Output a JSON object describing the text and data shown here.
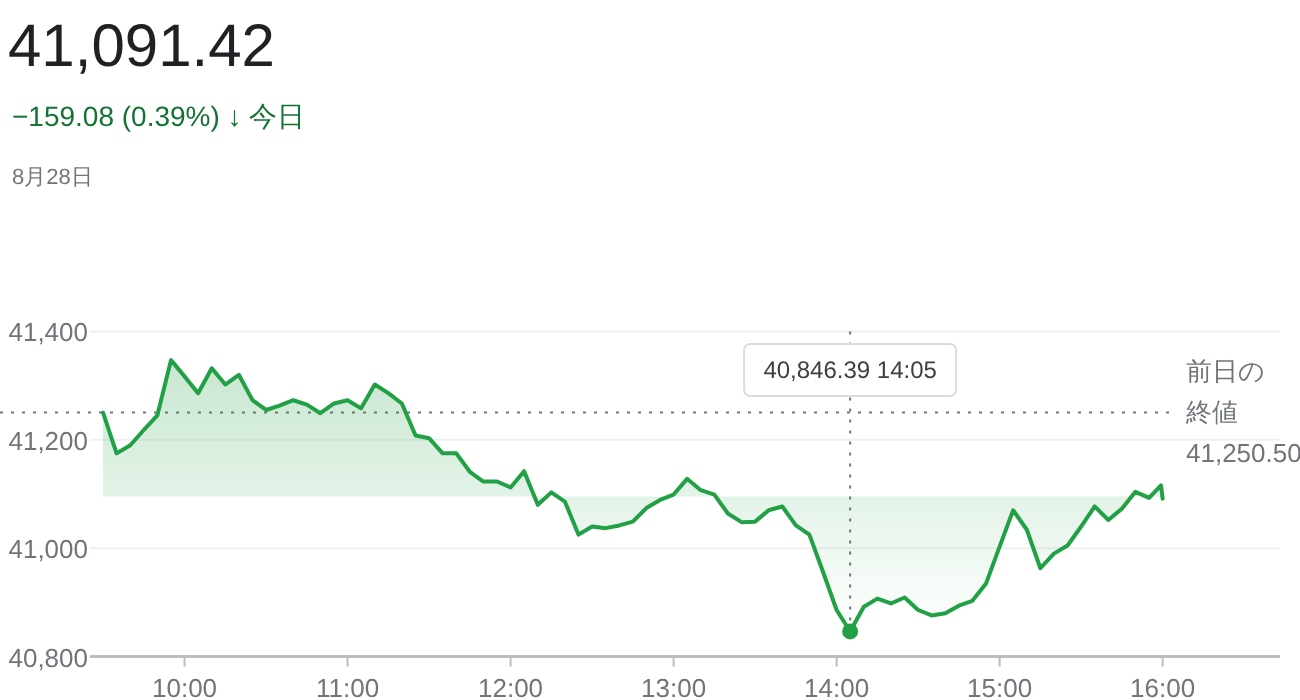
{
  "chart_data": {
    "type": "area",
    "title": "41,091.42",
    "subtitle": "−159.08 (0.39%) ↓ 今日",
    "annotations": [
      "8月28日",
      {
        "text": "40,846.39  14:05",
        "x": 14.083,
        "y": 40846.39
      }
    ],
    "series": [
      {
        "color": "#22a045",
        "x": [
          9.5,
          9.583,
          9.667,
          9.75,
          9.833,
          9.917,
          10.0,
          10.083,
          10.167,
          10.25,
          10.333,
          10.417,
          10.5,
          10.583,
          10.667,
          10.75,
          10.833,
          10.917,
          11.0,
          11.083,
          11.167,
          11.25,
          11.333,
          11.417,
          11.5,
          11.583,
          11.667,
          11.75,
          11.833,
          11.917,
          12.0,
          12.083,
          12.167,
          12.25,
          12.333,
          12.417,
          12.5,
          12.583,
          12.667,
          12.75,
          12.833,
          12.917,
          13.0,
          13.083,
          13.167,
          13.25,
          13.333,
          13.417,
          13.5,
          13.583,
          13.667,
          13.75,
          13.833,
          13.917,
          14.0,
          14.083,
          14.167,
          14.25,
          14.333,
          14.417,
          14.5,
          14.583,
          14.667,
          14.75,
          14.833,
          14.917,
          15.0,
          15.083,
          15.167,
          15.25,
          15.333,
          15.417,
          15.5,
          15.583,
          15.667,
          15.75,
          15.833,
          15.917,
          15.99,
          16.0
        ],
        "values": [
          41250,
          41175,
          41190,
          41218,
          41245,
          41347,
          41317,
          41286,
          41332,
          41302,
          41320,
          41273,
          41255,
          41263,
          41273,
          41265,
          41249,
          41267,
          41273,
          41258,
          41302,
          41286,
          41267,
          41208,
          41203,
          41175,
          41175,
          41141,
          41123,
          41123,
          41112,
          41142,
          41080,
          41103,
          41086,
          41025,
          41040,
          41037,
          41042,
          41049,
          41074,
          41089,
          41099,
          41128,
          41107,
          41099,
          41064,
          41048,
          41049,
          41070,
          41077,
          41042,
          41025,
          40956,
          40886,
          40846.39,
          40892,
          40907,
          40898,
          40909,
          40886,
          40876,
          40880,
          40894,
          40903,
          40935,
          41003,
          41070,
          41034,
          40963,
          40990,
          41005,
          41040,
          41077,
          41052,
          41073,
          41104,
          41093,
          41116,
          41091.42
        ]
      }
    ],
    "xlim": [
      9.42,
      16.72
    ],
    "xticks": [
      {
        "value": 10,
        "label": "10:00"
      },
      {
        "value": 11,
        "label": "11:00"
      },
      {
        "value": 12,
        "label": "12:00"
      },
      {
        "value": 13,
        "label": "13:00"
      },
      {
        "value": 14,
        "label": "14:00"
      },
      {
        "value": 15,
        "label": "15:00"
      },
      {
        "value": 16,
        "label": "16:00"
      }
    ],
    "ylim": [
      40800,
      41400
    ],
    "yticks": [
      {
        "value": 40800,
        "label": "40,800"
      },
      {
        "value": 41000,
        "label": "41,000"
      },
      {
        "value": 41200,
        "label": "41,200"
      },
      {
        "value": 41400,
        "label": "41,400"
      }
    ],
    "ref_lines": [
      {
        "axis": "y",
        "value": 41250.5,
        "label": "前日の終値\n41,250.50",
        "line_style": "dotted"
      }
    ],
    "grid": "y",
    "marker": "none",
    "line_style": "solid"
  }
}
